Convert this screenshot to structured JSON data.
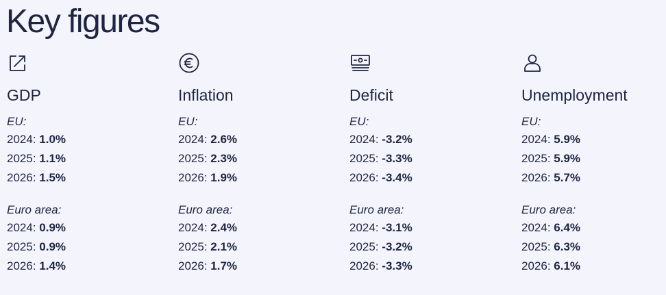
{
  "page": {
    "title": "Key figures"
  },
  "figures": [
    {
      "title": "GDP",
      "icon": "trend-up-icon",
      "groups": [
        {
          "label": "EU:",
          "rows": [
            {
              "year": "2024",
              "value": "1.0%"
            },
            {
              "year": "2025",
              "value": "1.1%"
            },
            {
              "year": "2026",
              "value": "1.5%"
            }
          ]
        },
        {
          "label": "Euro area:",
          "rows": [
            {
              "year": "2024",
              "value": "0.9%"
            },
            {
              "year": "2025",
              "value": "0.9%"
            },
            {
              "year": "2026",
              "value": "1.4%"
            }
          ]
        }
      ]
    },
    {
      "title": "Inflation",
      "icon": "euro-icon",
      "groups": [
        {
          "label": "EU:",
          "rows": [
            {
              "year": "2024",
              "value": "2.6%"
            },
            {
              "year": "2025",
              "value": "2.3%"
            },
            {
              "year": "2026",
              "value": "1.9%"
            }
          ]
        },
        {
          "label": "Euro area:",
          "rows": [
            {
              "year": "2024",
              "value": "2.4%"
            },
            {
              "year": "2025",
              "value": "2.1%"
            },
            {
              "year": "2026",
              "value": "1.7%"
            }
          ]
        }
      ]
    },
    {
      "title": "Deficit",
      "icon": "banknote-icon",
      "groups": [
        {
          "label": "EU:",
          "rows": [
            {
              "year": "2024",
              "value": "-3.2%"
            },
            {
              "year": "2025",
              "value": "-3.3%"
            },
            {
              "year": "2026",
              "value": "-3.4%"
            }
          ]
        },
        {
          "label": "Euro area:",
          "rows": [
            {
              "year": "2024",
              "value": "-3.1%"
            },
            {
              "year": "2025",
              "value": "-3.2%"
            },
            {
              "year": "2026",
              "value": "-3.3%"
            }
          ]
        }
      ]
    },
    {
      "title": "Unemployment",
      "icon": "person-icon",
      "groups": [
        {
          "label": "EU:",
          "rows": [
            {
              "year": "2024",
              "value": "5.9%"
            },
            {
              "year": "2025",
              "value": "5.9%"
            },
            {
              "year": "2026",
              "value": "5.7%"
            }
          ]
        },
        {
          "label": "Euro area:",
          "rows": [
            {
              "year": "2024",
              "value": "6.4%"
            },
            {
              "year": "2025",
              "value": "6.3%"
            },
            {
              "year": "2026",
              "value": "6.1%"
            }
          ]
        }
      ]
    }
  ],
  "colors": {
    "background": "#f3f4fc",
    "text": "#1f2540"
  }
}
